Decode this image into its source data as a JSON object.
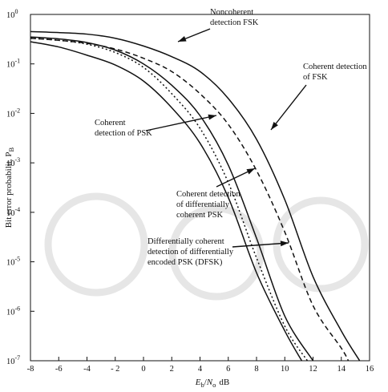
{
  "chart_data": {
    "type": "line",
    "xlabel": "E_b/N_o dB",
    "xlabel_parts": {
      "e": "E",
      "b": "b",
      "slash": "/",
      "n": "N",
      "o": "o",
      "unit": "dB"
    },
    "ylabel": "Bit error probabilit, P_B",
    "ylabel_parts": {
      "main": "Bit error probabilit, P",
      "sub": "B"
    },
    "xlim": [
      -8,
      16
    ],
    "ylim_log10": [
      -7,
      0
    ],
    "y_scale": "log",
    "grid": false,
    "x_ticks": [
      -8,
      -6,
      -4,
      -2,
      0,
      2,
      4,
      6,
      8,
      10,
      12,
      14,
      16
    ],
    "x_tick_labels": [
      "-8",
      "-6",
      "-4",
      "- 2",
      "0",
      "2",
      "4",
      "6",
      "8",
      "10",
      "12",
      "14",
      "16"
    ],
    "y_ticks": [
      {
        "base": "10",
        "exp": "0",
        "log": 0
      },
      {
        "base": "10",
        "exp": "-1",
        "log": -1
      },
      {
        "base": "10",
        "exp": "-2",
        "log": -2
      },
      {
        "base": "10",
        "exp": "-3",
        "log": -3
      },
      {
        "base": "10",
        "exp": "-4",
        "log": -4
      },
      {
        "base": "10",
        "exp": "-5",
        "log": -5
      },
      {
        "base": "10",
        "exp": "-6",
        "log": -6
      },
      {
        "base": "10",
        "exp": "-7",
        "log": -7
      }
    ],
    "series": [
      {
        "name": "Noncoherent detection FSK",
        "style": "solid",
        "x": [
          -8,
          -6,
          -4,
          -2,
          0,
          2,
          4,
          6,
          8,
          10,
          12,
          14,
          15.3
        ],
        "y": [
          0.45,
          0.43,
          0.4,
          0.33,
          0.23,
          0.14,
          0.07,
          0.02,
          0.003,
          0.00018,
          5e-06,
          4e-07,
          1e-07
        ]
      },
      {
        "name": "Coherent detection of FSK",
        "style": "dashed",
        "x": [
          -8,
          -6,
          -4,
          -2,
          0,
          2,
          4,
          6,
          8,
          10,
          12,
          14,
          14.5
        ],
        "y": [
          0.33,
          0.3,
          0.26,
          0.2,
          0.13,
          0.07,
          0.025,
          0.006,
          0.0007,
          4e-05,
          1.3e-06,
          1.8e-07,
          1e-07
        ]
      },
      {
        "name": "Coherent detection of PSK",
        "style": "solid",
        "x": [
          -8,
          -6,
          -4,
          -2,
          0,
          2,
          4,
          6,
          8,
          10,
          11.2
        ],
        "y": [
          0.28,
          0.22,
          0.15,
          0.095,
          0.045,
          0.013,
          0.0025,
          0.0002,
          6e-06,
          4e-07,
          1e-07
        ]
      },
      {
        "name": "Coherent detection of differentially coherent PSK",
        "style": "dotted",
        "x": [
          -8,
          -6,
          -4,
          -2,
          0,
          2,
          4,
          6,
          8,
          10,
          11.6
        ],
        "y": [
          0.33,
          0.3,
          0.25,
          0.17,
          0.085,
          0.025,
          0.005,
          0.0004,
          1.2e-05,
          5e-07,
          1e-07
        ]
      },
      {
        "name": "Differentially coherent detection of differentially encoded PSK (DFSK)",
        "style": "solid",
        "x": [
          -8,
          -6,
          -4,
          -2,
          0,
          2,
          4,
          6,
          8,
          10,
          12
        ],
        "y": [
          0.35,
          0.32,
          0.27,
          0.19,
          0.1,
          0.037,
          0.009,
          0.0009,
          3e-05,
          8e-07,
          1e-07
        ]
      }
    ],
    "annotations": [
      {
        "id": "ann-noncoherent",
        "lines": [
          "Noncoherent",
          "detection FSK"
        ],
        "series": 0
      },
      {
        "id": "ann-coherent-fsk",
        "lines": [
          "Coherent detection",
          "of FSK"
        ],
        "series": 1
      },
      {
        "id": "ann-coherent-psk",
        "lines": [
          "Coherent",
          "detection of PSK"
        ],
        "series": 2
      },
      {
        "id": "ann-diff-coherent",
        "lines": [
          "Coherent detection",
          "of differentially",
          "coherent PSK"
        ],
        "series": 3
      },
      {
        "id": "ann-dfsk",
        "lines": [
          "Differentially coherent",
          "detection of differentially",
          "encoded PSK (DFSK)"
        ],
        "series": 4
      }
    ]
  }
}
